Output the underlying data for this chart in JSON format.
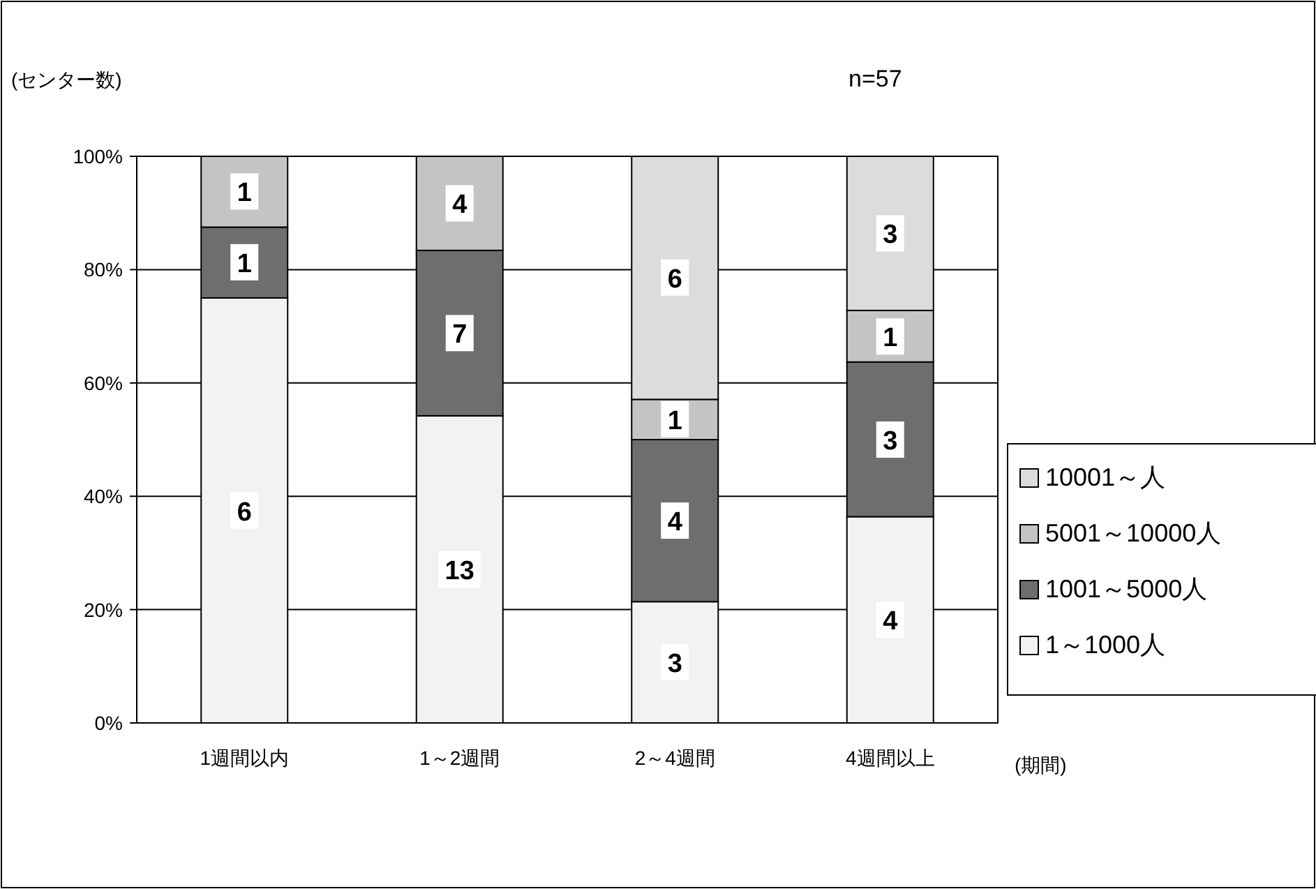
{
  "chart_data": {
    "type": "bar",
    "stacked": true,
    "ylabel": "(センター数)",
    "xlabel": "(期間)",
    "annotations": [
      "n=57",
      {
        "text": "6",
        "x": "1週間以内",
        "y": 37.5
      },
      {
        "text": "1",
        "x": "1週間以内",
        "y": 81.3
      },
      {
        "text": "1",
        "x": "1週間以内",
        "y": 93.8
      },
      {
        "text": "13",
        "x": "1～2週間",
        "y": 27.1
      },
      {
        "text": "7",
        "x": "1～2週間",
        "y": 68.8
      },
      {
        "text": "4",
        "x": "1～2週間",
        "y": 91.7
      },
      {
        "text": "3",
        "x": "2～4週間",
        "y": 10.7
      },
      {
        "text": "4",
        "x": "2～4週間",
        "y": 35.7
      },
      {
        "text": "1",
        "x": "2～4週間",
        "y": 53.6
      },
      {
        "text": "6",
        "x": "2～4週間",
        "y": 78.6
      },
      {
        "text": "4",
        "x": "4週間以上",
        "y": 18.2
      },
      {
        "text": "3",
        "x": "4週間以上",
        "y": 50
      },
      {
        "text": "1",
        "x": "4週間以上",
        "y": 68.2
      },
      {
        "text": "3",
        "x": "4週間以上",
        "y": 86.4
      }
    ],
    "categories": [
      "1週間以内",
      "1～2週間",
      "2～4週間",
      "4週間以上"
    ],
    "series": [
      {
        "name": "1～1000人",
        "color": "#f2f2f2",
        "values": [
          75,
          54.2,
          21.4,
          36.4
        ]
      },
      {
        "name": "1001～5000人",
        "color": "#6e6e6e",
        "values": [
          12.5,
          29.2,
          28.6,
          27.3
        ]
      },
      {
        "name": "5001～10000人",
        "color": "#c4c4c4",
        "values": [
          12.5,
          16.6,
          7.1,
          9.1
        ]
      },
      {
        "name": "10001～人",
        "color": "#dcdcdc",
        "values": [
          null,
          null,
          42.9,
          27.2
        ]
      }
    ],
    "ylim": [
      0,
      100
    ],
    "yticks": [
      {
        "value": 0,
        "label": "0%"
      },
      {
        "value": 20,
        "label": "20%"
      },
      {
        "value": 40,
        "label": "40%"
      },
      {
        "value": 60,
        "label": "60%"
      },
      {
        "value": 80,
        "label": "80%"
      },
      {
        "value": 100,
        "label": "100%"
      }
    ],
    "grid": "y",
    "legend": "right"
  }
}
